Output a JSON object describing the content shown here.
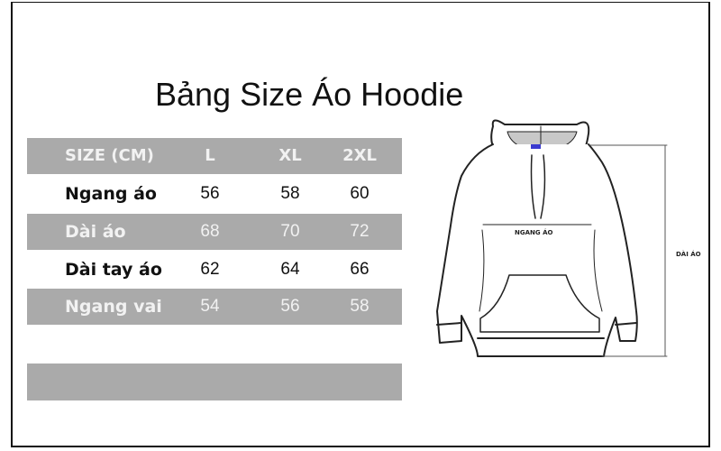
{
  "title": "Bảng Size Áo Hoodie",
  "table": {
    "headers": [
      "SIZE (CM)",
      "L",
      "XL",
      "2XL"
    ],
    "rows": [
      {
        "label": "Ngang áo",
        "values": [
          "56",
          "58",
          "60"
        ]
      },
      {
        "label": "Dài áo",
        "values": [
          "68",
          "70",
          "72"
        ]
      },
      {
        "label": "Dài tay áo",
        "values": [
          "62",
          "64",
          "66"
        ]
      },
      {
        "label": "Ngang vai",
        "values": [
          "54",
          "56",
          "58"
        ]
      }
    ]
  },
  "diagram": {
    "width_label": "NGANG ÁO",
    "length_label": "DÀI ÁO"
  },
  "colors": {
    "row_gray": "#aaaaaa",
    "tag_blue": "#3a3ad0"
  }
}
